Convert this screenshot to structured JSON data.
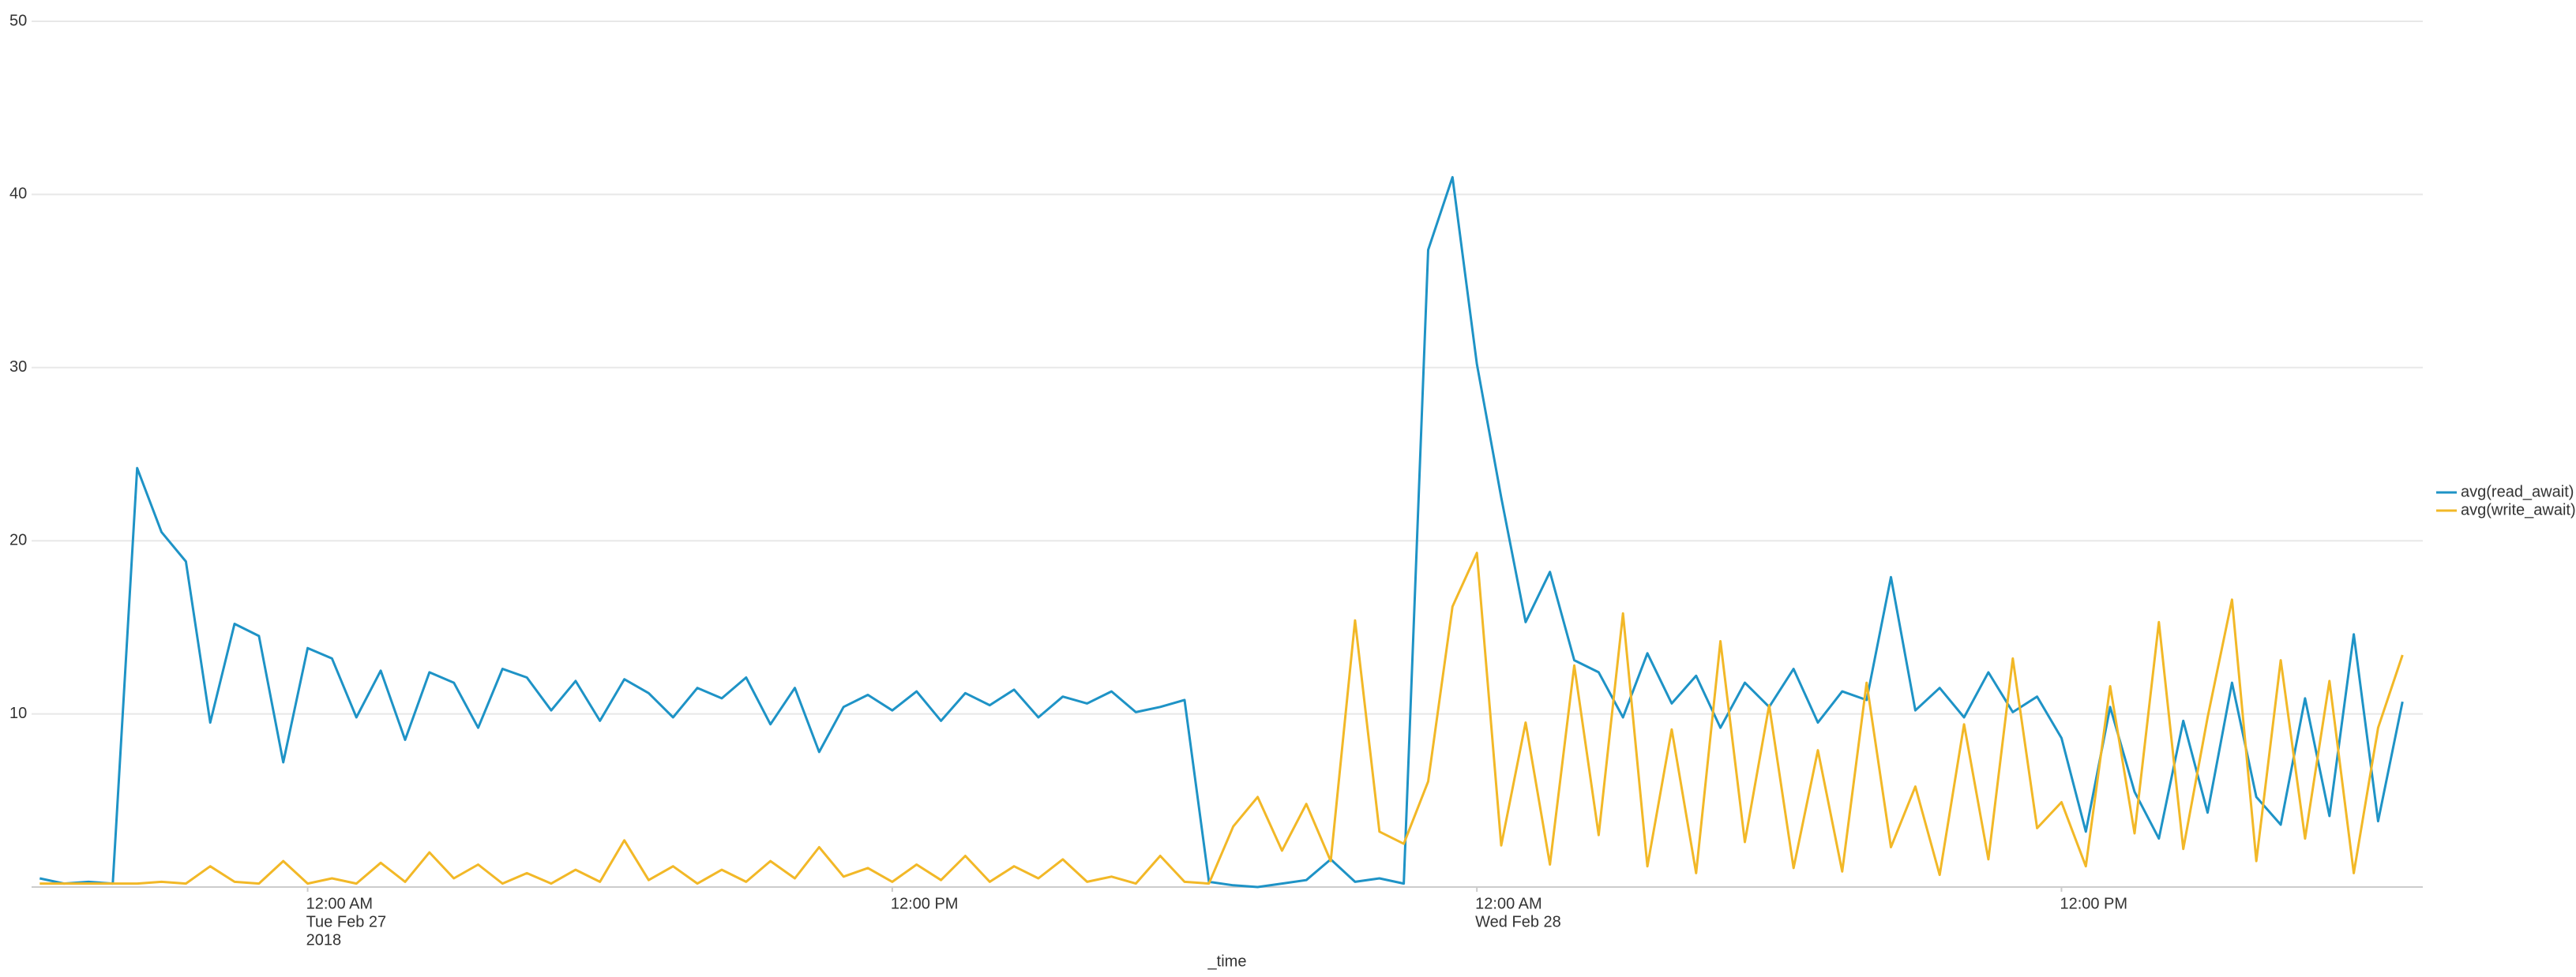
{
  "chart_data": {
    "type": "line",
    "x_label": "_time",
    "x": [
      "2018-02-26T18:30",
      "2018-02-26T19:00",
      "2018-02-26T19:30",
      "2018-02-26T20:00",
      "2018-02-26T20:30",
      "2018-02-26T21:00",
      "2018-02-26T21:30",
      "2018-02-26T22:00",
      "2018-02-26T22:30",
      "2018-02-26T23:00",
      "2018-02-26T23:30",
      "2018-02-27T00:00",
      "2018-02-27T00:30",
      "2018-02-27T01:00",
      "2018-02-27T01:30",
      "2018-02-27T02:00",
      "2018-02-27T02:30",
      "2018-02-27T03:00",
      "2018-02-27T03:30",
      "2018-02-27T04:00",
      "2018-02-27T04:30",
      "2018-02-27T05:00",
      "2018-02-27T05:30",
      "2018-02-27T06:00",
      "2018-02-27T06:30",
      "2018-02-27T07:00",
      "2018-02-27T07:30",
      "2018-02-27T08:00",
      "2018-02-27T08:30",
      "2018-02-27T09:00",
      "2018-02-27T09:30",
      "2018-02-27T10:00",
      "2018-02-27T10:30",
      "2018-02-27T11:00",
      "2018-02-27T11:30",
      "2018-02-27T12:00",
      "2018-02-27T12:30",
      "2018-02-27T13:00",
      "2018-02-27T13:30",
      "2018-02-27T14:00",
      "2018-02-27T14:30",
      "2018-02-27T15:00",
      "2018-02-27T15:30",
      "2018-02-27T16:00",
      "2018-02-27T16:30",
      "2018-02-27T17:00",
      "2018-02-27T17:30",
      "2018-02-27T18:00",
      "2018-02-27T18:30",
      "2018-02-27T19:00",
      "2018-02-27T19:30",
      "2018-02-27T20:00",
      "2018-02-27T20:30",
      "2018-02-27T21:00",
      "2018-02-27T21:30",
      "2018-02-27T22:00",
      "2018-02-27T22:30",
      "2018-02-27T23:00",
      "2018-02-27T23:30",
      "2018-02-28T00:00",
      "2018-02-28T00:30",
      "2018-02-28T01:00",
      "2018-02-28T01:30",
      "2018-02-28T02:00",
      "2018-02-28T02:30",
      "2018-02-28T03:00",
      "2018-02-28T03:30",
      "2018-02-28T04:00",
      "2018-02-28T04:30",
      "2018-02-28T05:00",
      "2018-02-28T05:30",
      "2018-02-28T06:00",
      "2018-02-28T06:30",
      "2018-02-28T07:00",
      "2018-02-28T07:30",
      "2018-02-28T08:00",
      "2018-02-28T08:30",
      "2018-02-28T09:00",
      "2018-02-28T09:30",
      "2018-02-28T10:00",
      "2018-02-28T10:30",
      "2018-02-28T11:00",
      "2018-02-28T11:30",
      "2018-02-28T12:00",
      "2018-02-28T12:30",
      "2018-02-28T13:00",
      "2018-02-28T13:30",
      "2018-02-28T14:00",
      "2018-02-28T14:30",
      "2018-02-28T15:00",
      "2018-02-28T15:30",
      "2018-02-28T16:00",
      "2018-02-28T16:30",
      "2018-02-28T17:00",
      "2018-02-28T17:30",
      "2018-02-28T18:00",
      "2018-02-28T18:30",
      "2018-02-28T19:00"
    ],
    "series": [
      {
        "name": "avg(read_await)",
        "color": "#1e93c6",
        "values": [
          0.5,
          0.2,
          0.3,
          0.2,
          24.2,
          20.5,
          18.8,
          9.5,
          15.2,
          14.5,
          7.2,
          13.8,
          13.2,
          9.8,
          12.5,
          8.5,
          12.4,
          11.8,
          9.2,
          12.6,
          12.1,
          10.2,
          11.9,
          9.6,
          12.0,
          11.2,
          9.8,
          11.5,
          10.9,
          12.1,
          9.4,
          11.5,
          7.8,
          10.4,
          11.1,
          10.2,
          11.3,
          9.6,
          11.2,
          10.5,
          11.4,
          9.8,
          11.0,
          10.6,
          11.3,
          10.1,
          10.4,
          10.8,
          0.3,
          0.1,
          0,
          0.2,
          0.4,
          1.6,
          0.3,
          0.5,
          0.2,
          36.8,
          41.0,
          30.2,
          22.5,
          15.3,
          18.2,
          13.1,
          12.4,
          9.8,
          13.5,
          10.6,
          12.2,
          9.2,
          11.8,
          10.4,
          12.6,
          9.5,
          11.3,
          10.8,
          17.9,
          10.2,
          11.5,
          9.8,
          12.4,
          10.1,
          11.0,
          8.6,
          3.2,
          10.4,
          5.5,
          2.8,
          9.6,
          4.3,
          11.8,
          5.2,
          3.6,
          10.9,
          4.1,
          14.6,
          3.8,
          10.7
        ]
      },
      {
        "name": "avg(write_await)",
        "color": "#f2b827",
        "values": [
          0.2,
          0.2,
          0.2,
          0.2,
          0.2,
          0.3,
          0.2,
          1.2,
          0.3,
          0.2,
          1.5,
          0.2,
          0.5,
          0.2,
          1.4,
          0.3,
          2.0,
          0.5,
          1.3,
          0.2,
          0.8,
          0.2,
          1.0,
          0.3,
          2.7,
          0.4,
          1.2,
          0.2,
          1.0,
          0.3,
          1.5,
          0.5,
          2.3,
          0.6,
          1.1,
          0.3,
          1.3,
          0.4,
          1.8,
          0.3,
          1.2,
          0.5,
          1.6,
          0.3,
          0.6,
          0.2,
          1.8,
          0.3,
          0.2,
          3.5,
          5.2,
          2.1,
          4.8,
          1.5,
          15.4,
          3.2,
          2.5,
          6.1,
          16.2,
          19.3,
          2.4,
          9.5,
          1.3,
          12.8,
          3.0,
          15.8,
          1.2,
          9.1,
          0.8,
          14.2,
          2.6,
          10.5,
          1.1,
          7.9,
          0.9,
          11.8,
          2.3,
          5.8,
          0.7,
          9.4,
          1.6,
          13.2,
          3.4,
          4.9,
          1.2,
          11.6,
          3.1,
          15.3,
          2.2,
          9.8,
          16.6,
          1.5,
          13.1,
          2.8,
          11.9,
          0.8,
          9.2,
          13.4
        ]
      }
    ],
    "xlim": [
      "2018-02-26T18:20",
      "2018-02-28T19:25"
    ],
    "xticks": [
      {
        "value": "2018-02-27T00:00",
        "label": [
          "12:00 AM",
          "Tue Feb 27",
          "2018"
        ]
      },
      {
        "value": "2018-02-27T12:00",
        "label": [
          "12:00 PM"
        ]
      },
      {
        "value": "2018-02-28T00:00",
        "label": [
          "12:00 AM",
          "Wed Feb 28"
        ]
      },
      {
        "value": "2018-02-28T12:00",
        "label": [
          "12:00 PM"
        ]
      }
    ],
    "ylim": [
      0,
      50
    ],
    "yticks": [
      10,
      20,
      30,
      40,
      50
    ],
    "grid": true,
    "legend": "right"
  }
}
